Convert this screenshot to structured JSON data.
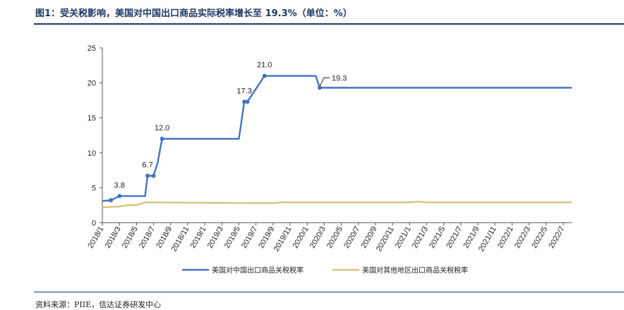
{
  "header": {
    "title": "图1：受关税影响，美国对中国出口商品实际税率增长至 19.3%（单位：%）"
  },
  "footer": {
    "source": "资料来源：PIIE，信达证券研发中心"
  },
  "colors": {
    "title": "#1f3864",
    "series_china": "#4472c4",
    "series_other": "#d9c37a"
  },
  "chart_data": {
    "type": "line",
    "xlabel": "",
    "ylabel": "",
    "ylim": [
      0,
      25
    ],
    "yticks": [
      0,
      5,
      10,
      15,
      20,
      25
    ],
    "xlim": [
      "2018/1",
      "2022/8"
    ],
    "xticks": [
      "2018/1",
      "2018/3",
      "2018/5",
      "2018/7",
      "2018/9",
      "2018/11",
      "2019/1",
      "2019/3",
      "2019/5",
      "2019/7",
      "2019/9",
      "2019/11",
      "2020/1",
      "2020/3",
      "2020/5",
      "2020/7",
      "2020/9",
      "2020/11",
      "2021/1",
      "2021/3",
      "2021/5",
      "2021/7",
      "2021/9",
      "2021/11",
      "2022/1",
      "2022/3",
      "2022/5",
      "2022/7"
    ],
    "grid": false,
    "legend_position": "bottom",
    "series": [
      {
        "name": "美国对中国出口商品关税税率",
        "color": "#4472c4",
        "points": [
          [
            "2018/1",
            3.1
          ],
          [
            "2018/2",
            3.2
          ],
          [
            "2018/3",
            3.8
          ],
          [
            "2018/4",
            3.8
          ],
          [
            "2018/5",
            3.8
          ],
          [
            "2018/6",
            3.8
          ],
          [
            "2018/6/10",
            6.7
          ],
          [
            "2018/7",
            6.7
          ],
          [
            "2018/7/15",
            8.5
          ],
          [
            "2018/8",
            12.0
          ],
          [
            "2018/9",
            12.0
          ],
          [
            "2019/5",
            12.0
          ],
          [
            "2019/5/20",
            17.3
          ],
          [
            "2019/6",
            17.3
          ],
          [
            "2019/8",
            21.0
          ],
          [
            "2020/2",
            21.0
          ],
          [
            "2020/2/15",
            19.3
          ],
          [
            "2022/8",
            19.3
          ]
        ]
      },
      {
        "name": "美国对其他地区出口商品关税税率",
        "color": "#d9c37a",
        "points": [
          [
            "2018/1",
            2.2
          ],
          [
            "2018/3",
            2.3
          ],
          [
            "2018/4",
            2.5
          ],
          [
            "2018/5",
            2.5
          ],
          [
            "2018/6",
            2.9
          ],
          [
            "2019/6",
            2.8
          ],
          [
            "2019/9",
            2.8
          ],
          [
            "2019/10",
            2.9
          ],
          [
            "2021/1",
            2.9
          ],
          [
            "2021/2",
            3.0
          ],
          [
            "2021/3",
            2.9
          ],
          [
            "2022/8",
            2.9
          ]
        ]
      }
    ],
    "annotations": [
      {
        "label": "3.8",
        "x": "2018/3",
        "y": 3.8
      },
      {
        "label": "6.7",
        "x": "2018/6/10",
        "y": 6.7
      },
      {
        "label": "12.0",
        "x": "2018/8",
        "y": 12.0
      },
      {
        "label": "17.3",
        "x": "2019/5/20",
        "y": 17.3
      },
      {
        "label": "21.0",
        "x": "2019/8",
        "y": 21.0
      },
      {
        "label": "19.3",
        "x": "2020/2/15",
        "y": 19.3
      }
    ]
  }
}
